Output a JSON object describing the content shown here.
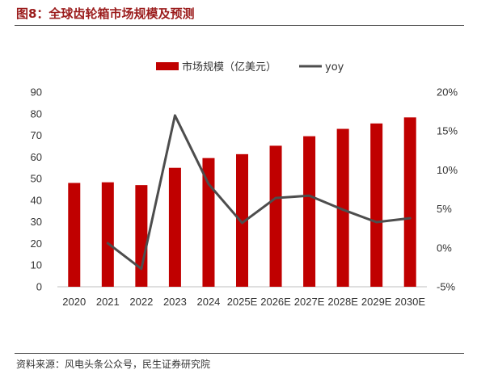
{
  "figure": {
    "title": "图8：全球齿轮箱市场规模及预测",
    "source": "资料来源：风电头条公众号，民生证券研究院"
  },
  "colors": {
    "bar": "#c00000",
    "line": "#4d4d4d",
    "title": "#9b1c1c"
  },
  "chart_data": {
    "type": "bar",
    "title": "",
    "categories": [
      "2020",
      "2021",
      "2022",
      "2023",
      "2024",
      "2025E",
      "2026E",
      "2027E",
      "2028E",
      "2029E",
      "2030E"
    ],
    "legend_position": "top-center",
    "grid": false,
    "series": [
      {
        "name": "市场规模（亿美元）",
        "type": "bar",
        "axis": "left",
        "values": [
          48,
          48.3,
          47,
          55,
          59.5,
          61.3,
          65.2,
          69.6,
          73,
          75.5,
          78.3
        ]
      },
      {
        "name": "yoy",
        "type": "line",
        "axis": "right",
        "values": [
          null,
          0.6,
          -2.7,
          17.0,
          8.2,
          3.2,
          6.4,
          6.7,
          4.9,
          3.3,
          3.8
        ]
      }
    ],
    "y_left": {
      "lim": [
        0,
        90
      ],
      "ticks": [
        0,
        10,
        20,
        30,
        40,
        50,
        60,
        70,
        80,
        90
      ],
      "tick_labels": [
        "0",
        "10",
        "20",
        "30",
        "40",
        "50",
        "60",
        "70",
        "80",
        "90"
      ]
    },
    "y_right": {
      "lim": [
        -5,
        20
      ],
      "ticks": [
        -5,
        0,
        5,
        10,
        15,
        20
      ],
      "tick_labels": [
        "-5%",
        "0%",
        "5%",
        "10%",
        "15%",
        "20%"
      ]
    }
  }
}
